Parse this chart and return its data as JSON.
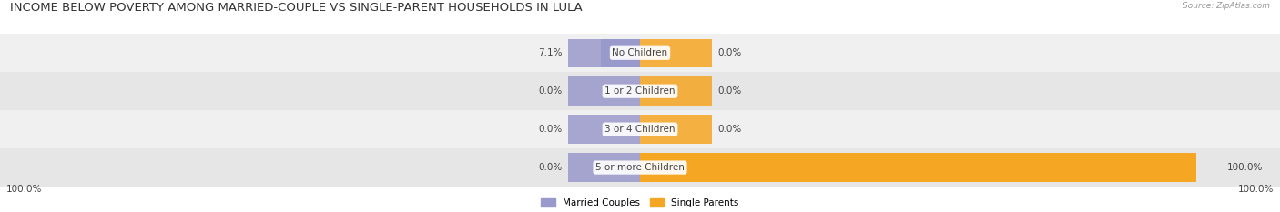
{
  "title": "INCOME BELOW POVERTY AMONG MARRIED-COUPLE VS SINGLE-PARENT HOUSEHOLDS IN LULA",
  "source": "Source: ZipAtlas.com",
  "categories": [
    "No Children",
    "1 or 2 Children",
    "3 or 4 Children",
    "5 or more Children"
  ],
  "married_values": [
    7.1,
    0.0,
    0.0,
    0.0
  ],
  "single_values": [
    0.0,
    0.0,
    0.0,
    100.0
  ],
  "married_color": "#9999cc",
  "single_color": "#f5a623",
  "label_color": "#444444",
  "title_color": "#333333",
  "title_fontsize": 9.5,
  "label_fontsize": 7.5,
  "value_fontsize": 7.5,
  "axis_label_left": "100.0%",
  "axis_label_right": "100.0%",
  "legend_labels": [
    "Married Couples",
    "Single Parents"
  ],
  "background_color": "#ffffff",
  "row_colors": [
    "#f0f0f0",
    "#e6e6e6",
    "#f0f0f0",
    "#e6e6e6"
  ]
}
